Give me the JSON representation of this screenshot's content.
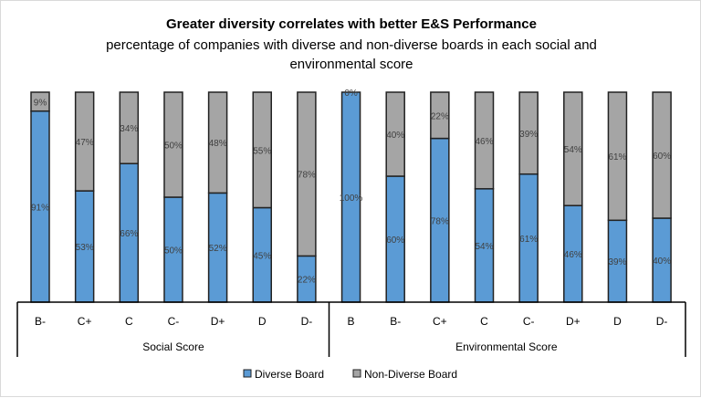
{
  "chart_data": {
    "type": "bar",
    "stacked": "percent",
    "title": "Greater diversity correlates with better E&S Performance",
    "subtitle_line1": "percentage of companies with diverse and non-diverse boards in each social and",
    "subtitle_line2": "environmental score",
    "groups": [
      {
        "name": "Social Score",
        "categories": [
          "B-",
          "C+",
          "C",
          "C-",
          "D+",
          "D",
          "D-"
        ]
      },
      {
        "name": "Environmental Score",
        "categories": [
          "B",
          "B-",
          "C+",
          "C",
          "C-",
          "D+",
          "D",
          "D-"
        ]
      }
    ],
    "series": [
      {
        "name": "Diverse Board",
        "color": "#5b9bd5",
        "values": [
          91,
          53,
          66,
          50,
          52,
          45,
          22,
          100,
          60,
          78,
          54,
          61,
          46,
          39,
          40
        ]
      },
      {
        "name": "Non-Diverse Board",
        "color": "#a5a5a5",
        "values": [
          9,
          47,
          34,
          50,
          48,
          55,
          78,
          0,
          40,
          22,
          46,
          39,
          54,
          61,
          60
        ]
      }
    ],
    "ylim": [
      0,
      100
    ],
    "legend": "bottom"
  }
}
